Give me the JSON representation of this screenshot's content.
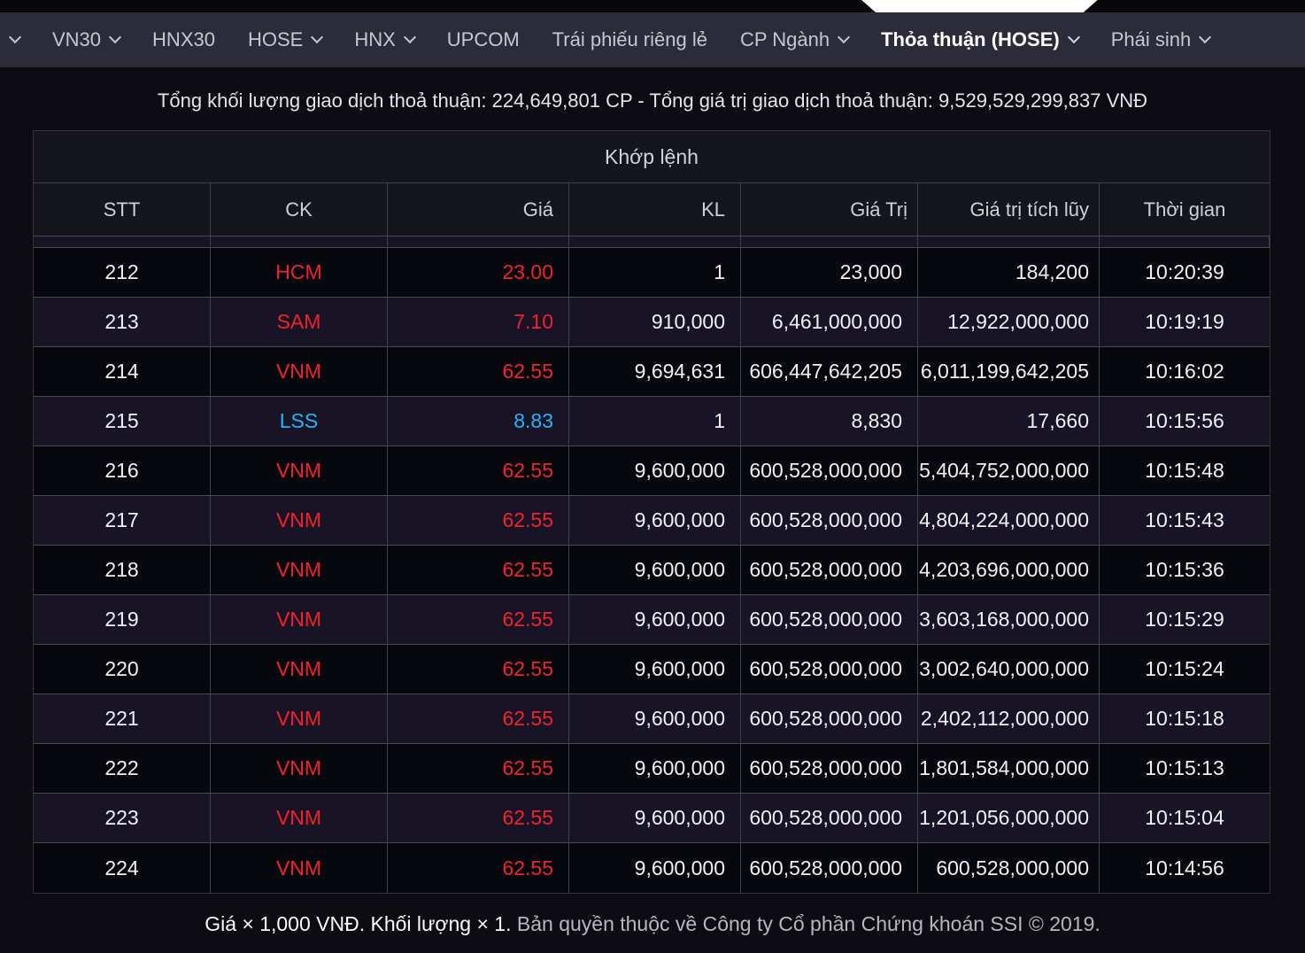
{
  "nav": {
    "tabs": [
      {
        "label": "VN30",
        "chevron": true,
        "active": false
      },
      {
        "label": "HNX30",
        "chevron": false,
        "active": false
      },
      {
        "label": "HOSE",
        "chevron": true,
        "active": false
      },
      {
        "label": "HNX",
        "chevron": true,
        "active": false
      },
      {
        "label": "UPCOM",
        "chevron": false,
        "active": false
      },
      {
        "label": "Trái phiếu riêng lẻ",
        "chevron": false,
        "active": false
      },
      {
        "label": "CP Ngành",
        "chevron": true,
        "active": false
      },
      {
        "label": "Thỏa thuận (HOSE)",
        "chevron": true,
        "active": true
      },
      {
        "label": "Phái sinh",
        "chevron": true,
        "active": false
      }
    ]
  },
  "summary": {
    "text": "Tổng khối lượng giao dịch thoả thuận: 224,649,801 CP - Tổng giá trị giao dịch thoả thuận: 9,529,529,299,837 VNĐ"
  },
  "table": {
    "group_header": "Khớp lệnh",
    "columns": [
      "STT",
      "CK",
      "Giá",
      "KL",
      "Giá Trị",
      "Giá trị tích lũy",
      "Thời gian"
    ],
    "rows": [
      {
        "stt": "212",
        "ck": "HCM",
        "gia": "23.00",
        "kl": "1",
        "gia_tri": "23,000",
        "gia_tri_tich_luy": "184,200",
        "thoi_gian": "10:20:39",
        "color": "red"
      },
      {
        "stt": "213",
        "ck": "SAM",
        "gia": "7.10",
        "kl": "910,000",
        "gia_tri": "6,461,000,000",
        "gia_tri_tich_luy": "12,922,000,000",
        "thoi_gian": "10:19:19",
        "color": "red"
      },
      {
        "stt": "214",
        "ck": "VNM",
        "gia": "62.55",
        "kl": "9,694,631",
        "gia_tri": "606,447,642,205",
        "gia_tri_tich_luy": "6,011,199,642,205",
        "thoi_gian": "10:16:02",
        "color": "red"
      },
      {
        "stt": "215",
        "ck": "LSS",
        "gia": "8.83",
        "kl": "1",
        "gia_tri": "8,830",
        "gia_tri_tich_luy": "17,660",
        "thoi_gian": "10:15:56",
        "color": "blue"
      },
      {
        "stt": "216",
        "ck": "VNM",
        "gia": "62.55",
        "kl": "9,600,000",
        "gia_tri": "600,528,000,000",
        "gia_tri_tich_luy": "5,404,752,000,000",
        "thoi_gian": "10:15:48",
        "color": "red"
      },
      {
        "stt": "217",
        "ck": "VNM",
        "gia": "62.55",
        "kl": "9,600,000",
        "gia_tri": "600,528,000,000",
        "gia_tri_tich_luy": "4,804,224,000,000",
        "thoi_gian": "10:15:43",
        "color": "red"
      },
      {
        "stt": "218",
        "ck": "VNM",
        "gia": "62.55",
        "kl": "9,600,000",
        "gia_tri": "600,528,000,000",
        "gia_tri_tich_luy": "4,203,696,000,000",
        "thoi_gian": "10:15:36",
        "color": "red"
      },
      {
        "stt": "219",
        "ck": "VNM",
        "gia": "62.55",
        "kl": "9,600,000",
        "gia_tri": "600,528,000,000",
        "gia_tri_tich_luy": "3,603,168,000,000",
        "thoi_gian": "10:15:29",
        "color": "red"
      },
      {
        "stt": "220",
        "ck": "VNM",
        "gia": "62.55",
        "kl": "9,600,000",
        "gia_tri": "600,528,000,000",
        "gia_tri_tich_luy": "3,002,640,000,000",
        "thoi_gian": "10:15:24",
        "color": "red"
      },
      {
        "stt": "221",
        "ck": "VNM",
        "gia": "62.55",
        "kl": "9,600,000",
        "gia_tri": "600,528,000,000",
        "gia_tri_tich_luy": "2,402,112,000,000",
        "thoi_gian": "10:15:18",
        "color": "red"
      },
      {
        "stt": "222",
        "ck": "VNM",
        "gia": "62.55",
        "kl": "9,600,000",
        "gia_tri": "600,528,000,000",
        "gia_tri_tich_luy": "1,801,584,000,000",
        "thoi_gian": "10:15:13",
        "color": "red"
      },
      {
        "stt": "223",
        "ck": "VNM",
        "gia": "62.55",
        "kl": "9,600,000",
        "gia_tri": "600,528,000,000",
        "gia_tri_tich_luy": "1,201,056,000,000",
        "thoi_gian": "10:15:04",
        "color": "red"
      },
      {
        "stt": "224",
        "ck": "VNM",
        "gia": "62.55",
        "kl": "9,600,000",
        "gia_tri": "600,528,000,000",
        "gia_tri_tich_luy": "600,528,000,000",
        "thoi_gian": "10:14:56",
        "color": "red"
      }
    ]
  },
  "footer": {
    "note": "Giá × 1,000 VNĐ. Khối lượng × 1.",
    "copyright": "Bản quyền thuộc về Công ty Cổ phần Chứng khoán SSI © 2019."
  },
  "colors": {
    "accent_red": "#f3212f",
    "accent_blue": "#28b3f4",
    "nav_bg": "#2b2b3a",
    "row_dark": "#07070e",
    "row_light": "#181325",
    "active_indicator": "#ffffff"
  }
}
